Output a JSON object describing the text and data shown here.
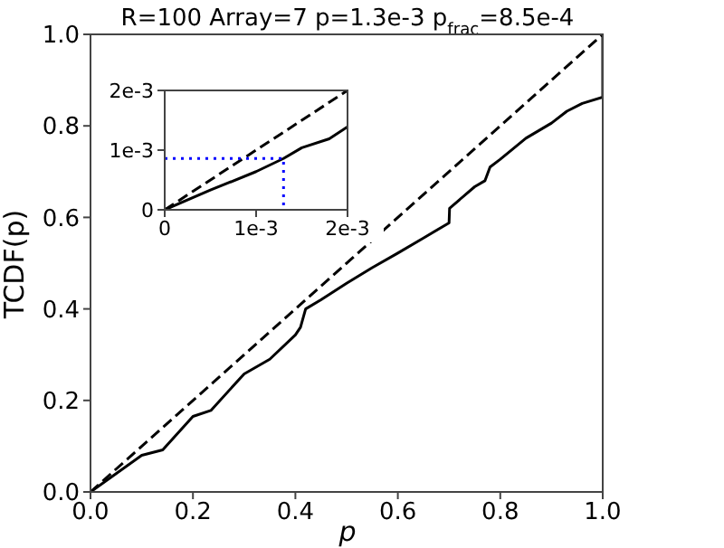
{
  "chart_data": [
    {
      "type": "line",
      "title": "R=100 Array=7  p=1.3e-3 p$_{frac}$=8.5e-4",
      "xlabel": "p",
      "ylabel": "TCDF(p)",
      "xlim": [
        0,
        1
      ],
      "ylim": [
        0,
        1
      ],
      "xticks": [
        {
          "value": 0,
          "label": "0.0"
        },
        0.2,
        0.4,
        0.6,
        0.8,
        {
          "value": 1,
          "label": "1.0"
        }
      ],
      "yticks": [
        {
          "value": 0,
          "label": "0.0"
        },
        0.2,
        0.4,
        0.6,
        0.8,
        {
          "value": 1,
          "label": "1.0"
        }
      ],
      "grid": false,
      "legend": false,
      "marker": "none",
      "series": [
        {
          "color": "#000000",
          "line_style": "dashed",
          "x": [
            0,
            1
          ],
          "values": [
            0,
            1
          ]
        },
        {
          "color": "#000000",
          "line_style": "solid",
          "x": [
            0,
            0.05,
            0.1,
            0.141,
            0.2,
            0.235,
            0.3,
            0.35,
            0.4,
            0.41,
            0.42,
            0.45,
            0.5,
            0.55,
            0.6,
            0.65,
            0.7,
            0.701,
            0.75,
            0.77,
            0.78,
            0.8,
            0.85,
            0.9,
            0.93,
            0.96,
            1.0,
            1.0
          ],
          "values": [
            0,
            0.04,
            0.08,
            0.092,
            0.165,
            0.178,
            0.258,
            0.29,
            0.343,
            0.36,
            0.4,
            0.42,
            0.456,
            0.49,
            0.522,
            0.555,
            0.588,
            0.62,
            0.667,
            0.68,
            0.71,
            0.727,
            0.773,
            0.806,
            0.832,
            0.849,
            0.863,
            1.0
          ]
        }
      ]
    },
    {
      "type": "line",
      "xlim": [
        0,
        0.002
      ],
      "ylim": [
        0,
        0.002
      ],
      "xticks": [
        {
          "value": 0,
          "label": "0"
        },
        {
          "value": 0.001,
          "label": "1e-3"
        },
        {
          "value": 0.002,
          "label": "2e-3"
        }
      ],
      "yticks": [
        {
          "value": 0,
          "label": "0"
        },
        {
          "value": 0.001,
          "label": "1e-3"
        },
        {
          "value": 0.002,
          "label": "2e-3"
        }
      ],
      "grid": false,
      "legend": false,
      "marker": "none",
      "series": [
        {
          "color": "#000000",
          "line_style": "dashed",
          "x": [
            0,
            0.002
          ],
          "values": [
            0,
            0.002
          ]
        },
        {
          "color": "#000000",
          "line_style": "solid",
          "x": [
            0,
            0.0005,
            0.001,
            0.0013,
            0.0015,
            0.0018,
            0.002
          ],
          "values": [
            0,
            0.00033,
            0.00064,
            0.00086,
            0.00104,
            0.00119,
            0.00139
          ]
        },
        {
          "color": "#0000ff",
          "line_style": "dotted",
          "x": [
            0,
            0.0013,
            0.0013
          ],
          "values": [
            0.00086,
            0.00086,
            0
          ]
        }
      ]
    }
  ]
}
